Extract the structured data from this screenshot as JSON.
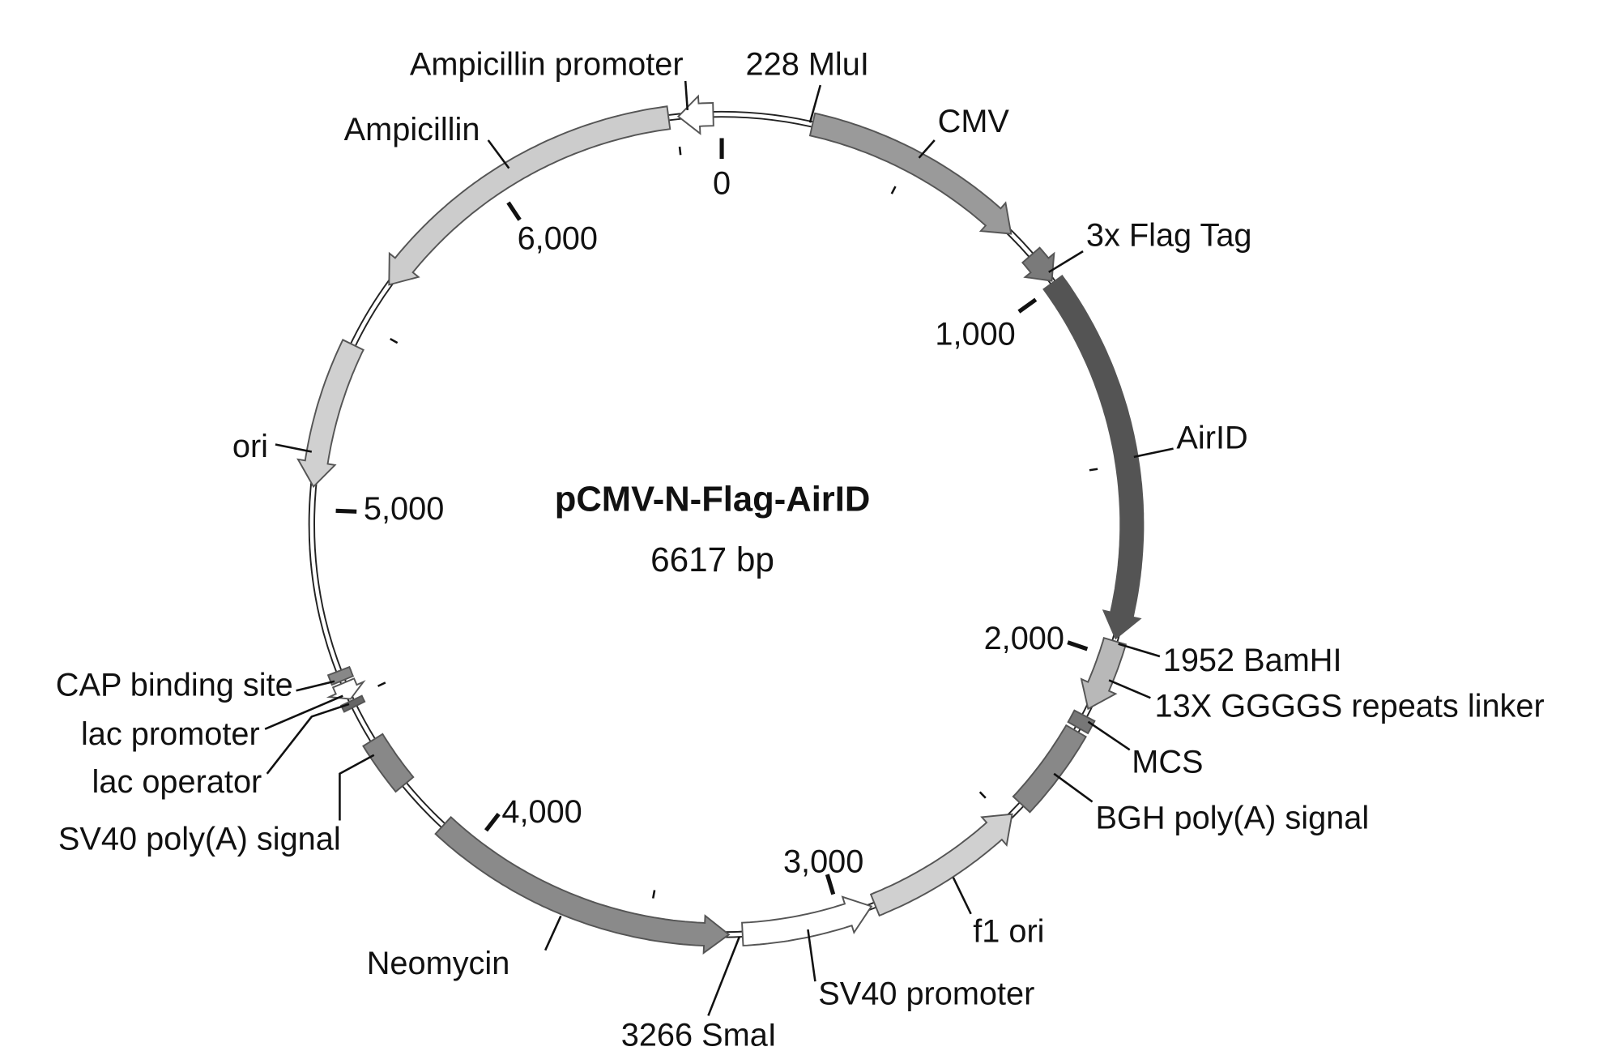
{
  "plasmid": {
    "name": "pCMV-N-Flag-AirID",
    "size_label": "6617 bp",
    "length_bp": 6617
  },
  "features": [
    {
      "label": "Ampicillin promoter",
      "start": 6505,
      "end": 6595,
      "direction": "ccw",
      "color": "#ffffff"
    },
    {
      "label": "CMV",
      "start": 235,
      "end": 825,
      "direction": "cw",
      "color": "#9a9a9a"
    },
    {
      "label": "3x Flag Tag",
      "start": 900,
      "end": 985,
      "direction": "cw",
      "color": "#7a7a7a"
    },
    {
      "label": "AirID",
      "start": 990,
      "end": 1951,
      "direction": "cw",
      "color": "#545454"
    },
    {
      "label": "13X GGGGS repeats linker",
      "start": 1958,
      "end": 2145,
      "direction": "cw",
      "color": "#b8b8b8"
    },
    {
      "label": "MCS",
      "start": 2165,
      "end": 2200,
      "direction": "none",
      "color": "#777777"
    },
    {
      "label": "BGH poly(A) signal",
      "start": 2210,
      "end": 2445,
      "direction": "none",
      "color": "#888888"
    },
    {
      "label": "f1 ori",
      "start": 2480,
      "end": 2905,
      "direction": "ccw",
      "color": "#d0d0d0"
    },
    {
      "label": "SV40 promoter",
      "start": 2915,
      "end": 3255,
      "direction": "ccw",
      "color": "#ffffff"
    },
    {
      "label": "Neomycin",
      "start": 3290,
      "end": 4095,
      "direction": "ccw",
      "color": "#8a8a8a"
    },
    {
      "label": "SV40 poly(A) signal",
      "start": 4240,
      "end": 4380,
      "direction": "none",
      "color": "#888888"
    },
    {
      "label": "lac operator",
      "start": 4478,
      "end": 4495,
      "direction": "none",
      "color": "#666666"
    },
    {
      "label": "lac promoter",
      "start": 4500,
      "end": 4545,
      "direction": "ccw",
      "color": "#ffffff"
    },
    {
      "label": "CAP binding site",
      "start": 4552,
      "end": 4578,
      "direction": "none",
      "color": "#888888"
    },
    {
      "label": "ori",
      "start": 5060,
      "end": 5440,
      "direction": "ccw",
      "color": "#d0d0d0"
    },
    {
      "label": "Ampicillin",
      "start": 5620,
      "end": 6480,
      "direction": "ccw",
      "color": "#cccccc"
    }
  ],
  "sites": [
    {
      "label": "228 MluI",
      "position": 228
    },
    {
      "label": "1952 BamHI",
      "position": 1952
    },
    {
      "label": "3266 SmaI",
      "position": 3266
    }
  ],
  "ticks": {
    "major": [
      0,
      1000,
      2000,
      3000,
      4000,
      5000,
      6000
    ],
    "major_labels": [
      "0",
      "1,000",
      "2,000",
      "3,000",
      "4,000",
      "5,000",
      "6,000"
    ],
    "minor": [
      500,
      1500,
      2500,
      3500,
      4500,
      5500,
      6500
    ]
  }
}
